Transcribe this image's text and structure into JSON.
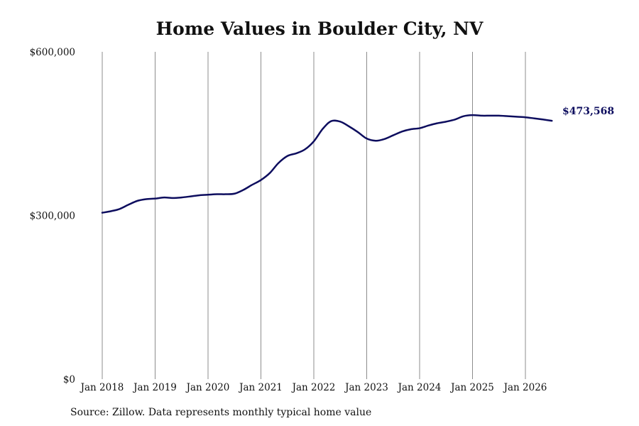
{
  "chart_data": {
    "type": "line",
    "title": "Home Values in Boulder City, NV",
    "source": "Source: Zillow. Data represents monthly typical home value",
    "ylim": [
      0,
      600000
    ],
    "y_ticks": [
      "$600,000",
      "$300,000",
      "$0"
    ],
    "y_tick_values": [
      600000,
      300000,
      0
    ],
    "x_ticks": [
      "Jan 2018",
      "Jan 2019",
      "Jan 2020",
      "Jan 2021",
      "Jan 2022",
      "Jan 2023",
      "Jan 2024",
      "Jan 2025",
      "Jan 2026"
    ],
    "x_tick_values": [
      2018.0,
      2019.0,
      2020.0,
      2021.0,
      2022.0,
      2023.0,
      2024.0,
      2025.0,
      2026.0
    ],
    "xlim": [
      2018.0,
      2026.5
    ],
    "grid": "vertical",
    "line_color": "#0d0d5e",
    "gridline_color": "#8c8c8c",
    "end_value_label": "$473,568",
    "series": [
      {
        "x": [
          2018.0,
          2018.17,
          2018.33,
          2018.5,
          2018.67,
          2018.83,
          2019.0,
          2019.17,
          2019.33,
          2019.5,
          2019.67,
          2019.83,
          2020.0,
          2020.17,
          2020.33,
          2020.5,
          2020.67,
          2020.83,
          2021.0,
          2021.17,
          2021.33,
          2021.5,
          2021.67,
          2021.83,
          2022.0,
          2022.17,
          2022.33,
          2022.5,
          2022.67,
          2022.83,
          2023.0,
          2023.17,
          2023.33,
          2023.5,
          2023.67,
          2023.83,
          2024.0,
          2024.17,
          2024.33,
          2024.5,
          2024.67,
          2024.83,
          2025.0,
          2025.17,
          2025.33,
          2025.5,
          2025.67,
          2025.83,
          2026.0,
          2026.17,
          2026.33,
          2026.5
        ],
        "values": [
          305000,
          308000,
          312000,
          320000,
          327000,
          330000,
          331000,
          333000,
          332000,
          333000,
          335000,
          337000,
          338000,
          339000,
          339000,
          340000,
          347000,
          356000,
          365000,
          378000,
          396000,
          409000,
          414000,
          421000,
          436000,
          459000,
          473000,
          472000,
          463000,
          453000,
          441000,
          437000,
          440000,
          447000,
          454000,
          458000,
          460000,
          465000,
          469000,
          472000,
          476000,
          482000,
          484000,
          483000,
          483000,
          483000,
          482000,
          481000,
          480000,
          478000,
          476000,
          473568
        ]
      }
    ]
  }
}
